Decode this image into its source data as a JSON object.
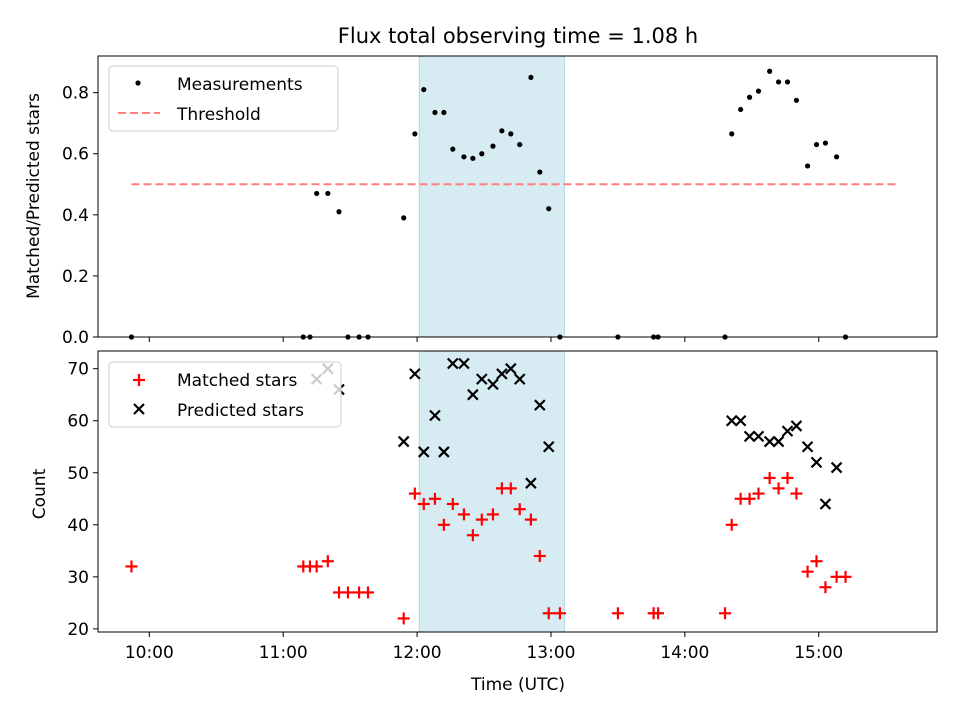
{
  "chart_data": [
    {
      "type": "scatter",
      "title": "Flux total observing time = 1.08 h",
      "ylabel": "Matched/Predicted stars",
      "ylim": [
        0,
        0.92
      ],
      "xlim": [
        "09:37",
        "15:53"
      ],
      "y_ticks": [
        "0.0",
        "0.2",
        "0.4",
        "0.6",
        "0.8"
      ],
      "highlight_span": [
        "12:01",
        "13:06"
      ],
      "legend_position": "upper-left",
      "threshold": {
        "name": "Threshold",
        "value": 0.5,
        "x_range": [
          "09:52",
          "15:35"
        ],
        "color": "#ff7f7f"
      },
      "series": [
        {
          "name": "Measurements",
          "marker": "dot",
          "color": "#000000",
          "points": [
            [
              "09:52",
              0.0
            ],
            [
              "11:09",
              0.0
            ],
            [
              "11:12",
              0.0
            ],
            [
              "11:15",
              0.47
            ],
            [
              "11:20",
              0.47
            ],
            [
              "11:25",
              0.41
            ],
            [
              "11:29",
              0.0
            ],
            [
              "11:34",
              0.0
            ],
            [
              "11:38",
              0.0
            ],
            [
              "11:54",
              0.39
            ],
            [
              "11:59",
              0.665
            ],
            [
              "12:03",
              0.81
            ],
            [
              "12:08",
              0.735
            ],
            [
              "12:12",
              0.735
            ],
            [
              "12:16",
              0.615
            ],
            [
              "12:21",
              0.59
            ],
            [
              "12:25",
              0.585
            ],
            [
              "12:29",
              0.6
            ],
            [
              "12:34",
              0.625
            ],
            [
              "12:38",
              0.675
            ],
            [
              "12:42",
              0.665
            ],
            [
              "12:46",
              0.63
            ],
            [
              "12:51",
              0.85
            ],
            [
              "12:55",
              0.54
            ],
            [
              "12:59",
              0.42
            ],
            [
              "13:04",
              0.0
            ],
            [
              "13:30",
              0.0
            ],
            [
              "13:46",
              0.0
            ],
            [
              "13:48",
              0.0
            ],
            [
              "14:18",
              0.0
            ],
            [
              "14:21",
              0.665
            ],
            [
              "14:25",
              0.745
            ],
            [
              "14:29",
              0.785
            ],
            [
              "14:33",
              0.805
            ],
            [
              "14:38",
              0.87
            ],
            [
              "14:42",
              0.835
            ],
            [
              "14:46",
              0.835
            ],
            [
              "14:50",
              0.775
            ],
            [
              "14:55",
              0.56
            ],
            [
              "14:59",
              0.63
            ],
            [
              "15:03",
              0.635
            ],
            [
              "15:08",
              0.59
            ],
            [
              "15:12",
              0.0
            ]
          ]
        }
      ]
    },
    {
      "type": "scatter",
      "xlabel": "Time (UTC)",
      "ylabel": "Count",
      "ylim": [
        19.4,
        73.4
      ],
      "xlim": [
        "09:37",
        "15:53"
      ],
      "y_ticks": [
        "20",
        "30",
        "40",
        "50",
        "60",
        "70"
      ],
      "x_ticks": [
        "10:00",
        "11:00",
        "12:00",
        "13:00",
        "14:00",
        "15:00"
      ],
      "highlight_span": [
        "12:01",
        "13:06"
      ],
      "legend_position": "upper-left",
      "series": [
        {
          "name": "Matched stars",
          "marker": "plus",
          "color": "#ff0000",
          "points": [
            [
              "09:52",
              32
            ],
            [
              "11:09",
              32
            ],
            [
              "11:12",
              32
            ],
            [
              "11:15",
              32
            ],
            [
              "11:20",
              33
            ],
            [
              "11:25",
              27
            ],
            [
              "11:29",
              27
            ],
            [
              "11:34",
              27
            ],
            [
              "11:38",
              27
            ],
            [
              "11:54",
              22
            ],
            [
              "11:59",
              46
            ],
            [
              "12:03",
              44
            ],
            [
              "12:08",
              45
            ],
            [
              "12:12",
              40
            ],
            [
              "12:16",
              44
            ],
            [
              "12:21",
              42
            ],
            [
              "12:25",
              38
            ],
            [
              "12:29",
              41
            ],
            [
              "12:34",
              42
            ],
            [
              "12:38",
              47
            ],
            [
              "12:42",
              47
            ],
            [
              "12:46",
              43
            ],
            [
              "12:51",
              41
            ],
            [
              "12:55",
              34
            ],
            [
              "12:59",
              23
            ],
            [
              "13:04",
              23
            ],
            [
              "13:30",
              23
            ],
            [
              "13:46",
              23
            ],
            [
              "13:48",
              23
            ],
            [
              "14:18",
              23
            ],
            [
              "14:21",
              40
            ],
            [
              "14:25",
              45
            ],
            [
              "14:29",
              45
            ],
            [
              "14:33",
              46
            ],
            [
              "14:38",
              49
            ],
            [
              "14:42",
              47
            ],
            [
              "14:46",
              49
            ],
            [
              "14:50",
              46
            ],
            [
              "14:55",
              31
            ],
            [
              "14:59",
              33
            ],
            [
              "15:03",
              28
            ],
            [
              "15:08",
              30
            ],
            [
              "15:12",
              30
            ]
          ]
        },
        {
          "name": "Predicted stars",
          "marker": "x",
          "color": "#000000",
          "points": [
            [
              "11:15",
              68
            ],
            [
              "11:20",
              70
            ],
            [
              "11:25",
              66
            ],
            [
              "11:54",
              56
            ],
            [
              "11:59",
              69
            ],
            [
              "12:03",
              54
            ],
            [
              "12:08",
              61
            ],
            [
              "12:12",
              54
            ],
            [
              "12:16",
              71
            ],
            [
              "12:21",
              71
            ],
            [
              "12:25",
              65
            ],
            [
              "12:29",
              68
            ],
            [
              "12:34",
              67
            ],
            [
              "12:38",
              69
            ],
            [
              "12:42",
              70
            ],
            [
              "12:46",
              68
            ],
            [
              "12:51",
              48
            ],
            [
              "12:55",
              63
            ],
            [
              "12:59",
              55
            ],
            [
              "14:21",
              60
            ],
            [
              "14:25",
              60
            ],
            [
              "14:29",
              57
            ],
            [
              "14:33",
              57
            ],
            [
              "14:38",
              56
            ],
            [
              "14:42",
              56
            ],
            [
              "14:46",
              58
            ],
            [
              "14:50",
              59
            ],
            [
              "14:55",
              55
            ],
            [
              "14:59",
              52
            ],
            [
              "15:03",
              44
            ],
            [
              "15:08",
              51
            ]
          ]
        }
      ]
    }
  ]
}
